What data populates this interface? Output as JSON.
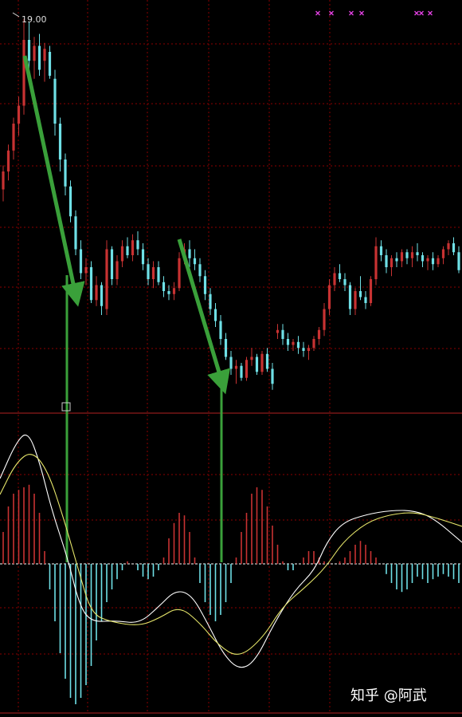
{
  "chart_data": [
    {
      "type": "candlestick",
      "title": "",
      "price_label": "19.00",
      "colors": {
        "up": "#c83232",
        "down": "#6fe0e6",
        "grid": "#8b0000",
        "arrow": "#3aa03a",
        "marker": "#e040e0"
      },
      "candles_ohlc": [
        [
          13.2,
          14.0,
          12.8,
          13.8
        ],
        [
          13.8,
          14.7,
          13.5,
          14.5
        ],
        [
          14.5,
          15.6,
          14.2,
          15.4
        ],
        [
          15.4,
          16.3,
          15.0,
          16.0
        ],
        [
          16.0,
          18.9,
          15.7,
          18.2
        ],
        [
          18.2,
          18.8,
          17.2,
          17.5
        ],
        [
          17.5,
          18.3,
          16.9,
          18.0
        ],
        [
          18.0,
          18.4,
          17.0,
          17.2
        ],
        [
          17.5,
          18.1,
          16.8,
          17.9
        ],
        [
          17.8,
          18.0,
          16.9,
          17.0
        ],
        [
          16.9,
          17.2,
          15.0,
          15.4
        ],
        [
          15.4,
          15.6,
          13.8,
          14.2
        ],
        [
          14.2,
          14.4,
          13.0,
          13.3
        ],
        [
          13.3,
          13.5,
          12.1,
          12.3
        ],
        [
          12.3,
          12.5,
          11.0,
          11.2
        ],
        [
          11.2,
          11.5,
          10.2,
          10.4
        ],
        [
          10.4,
          10.9,
          10.0,
          10.6
        ],
        [
          10.6,
          10.8,
          9.4,
          9.5
        ],
        [
          9.5,
          10.3,
          9.3,
          10.0
        ],
        [
          10.0,
          10.1,
          9.0,
          9.3
        ],
        [
          9.2,
          11.5,
          9.0,
          11.2
        ],
        [
          11.2,
          11.3,
          10.0,
          10.2
        ],
        [
          10.2,
          11.0,
          10.0,
          10.8
        ],
        [
          10.8,
          11.5,
          10.6,
          11.3
        ],
        [
          11.3,
          11.6,
          10.9,
          11.0
        ],
        [
          11.0,
          11.7,
          10.8,
          11.5
        ],
        [
          11.5,
          11.8,
          11.0,
          11.2
        ],
        [
          11.2,
          11.4,
          10.5,
          10.7
        ],
        [
          10.7,
          10.9,
          10.0,
          10.2
        ],
        [
          10.2,
          10.8,
          9.9,
          10.6
        ],
        [
          10.6,
          10.8,
          10.0,
          10.1
        ],
        [
          10.1,
          10.3,
          9.6,
          9.8
        ],
        [
          9.8,
          10.0,
          9.5,
          9.7
        ],
        [
          9.7,
          10.1,
          9.5,
          9.9
        ],
        [
          9.9,
          11.1,
          9.8,
          10.9
        ],
        [
          10.9,
          11.4,
          10.7,
          11.2
        ],
        [
          11.2,
          11.5,
          10.6,
          10.9
        ],
        [
          10.9,
          11.2,
          10.5,
          10.7
        ],
        [
          10.7,
          10.9,
          10.1,
          10.3
        ],
        [
          10.3,
          10.5,
          9.5,
          9.7
        ],
        [
          9.7,
          9.9,
          9.0,
          9.2
        ],
        [
          9.2,
          9.4,
          8.6,
          8.8
        ],
        [
          8.8,
          9.0,
          8.0,
          8.2
        ],
        [
          8.2,
          8.4,
          7.5,
          7.6
        ],
        [
          7.6,
          7.8,
          7.0,
          7.2
        ],
        [
          7.2,
          7.5,
          6.7,
          7.3
        ],
        [
          7.3,
          7.4,
          6.8,
          6.9
        ],
        [
          6.9,
          7.6,
          6.8,
          7.5
        ],
        [
          7.5,
          7.9,
          7.3,
          7.6
        ],
        [
          7.6,
          7.7,
          7.0,
          7.1
        ],
        [
          7.1,
          7.8,
          7.0,
          7.7
        ],
        [
          7.7,
          7.9,
          7.1,
          7.2
        ],
        [
          7.2,
          7.4,
          6.5,
          6.7
        ],
        [
          8.4,
          8.7,
          8.2,
          8.5
        ],
        [
          8.5,
          8.7,
          8.0,
          8.2
        ],
        [
          8.2,
          8.4,
          7.8,
          8.0
        ],
        [
          8.0,
          8.2,
          7.8,
          8.1
        ],
        [
          8.1,
          8.3,
          7.7,
          7.9
        ],
        [
          7.9,
          8.1,
          7.6,
          7.8
        ],
        [
          7.8,
          8.0,
          7.5,
          7.9
        ],
        [
          7.9,
          8.3,
          7.8,
          8.2
        ],
        [
          8.2,
          8.6,
          8.0,
          8.5
        ],
        [
          8.5,
          9.4,
          8.3,
          9.2
        ],
        [
          9.2,
          10.2,
          9.0,
          10.0
        ],
        [
          10.0,
          10.6,
          9.8,
          10.4
        ],
        [
          10.4,
          10.7,
          10.1,
          10.2
        ],
        [
          10.2,
          10.4,
          9.8,
          10.0
        ],
        [
          10.0,
          10.1,
          9.0,
          9.2
        ],
        [
          9.2,
          9.9,
          9.0,
          9.8
        ],
        [
          9.8,
          10.3,
          9.5,
          9.6
        ],
        [
          9.6,
          9.8,
          9.2,
          9.4
        ],
        [
          9.4,
          10.3,
          9.3,
          10.2
        ],
        [
          10.2,
          11.6,
          10.0,
          11.3
        ],
        [
          11.3,
          11.5,
          10.8,
          11.0
        ],
        [
          11.0,
          11.2,
          10.4,
          10.6
        ],
        [
          10.6,
          11.0,
          10.3,
          10.9
        ],
        [
          10.9,
          11.1,
          10.6,
          10.8
        ],
        [
          10.8,
          11.2,
          10.6,
          11.1
        ],
        [
          11.1,
          11.2,
          10.7,
          10.9
        ],
        [
          10.9,
          11.3,
          10.6,
          11.1
        ],
        [
          11.1,
          11.4,
          10.8,
          11.0
        ],
        [
          11.0,
          11.1,
          10.6,
          10.8
        ],
        [
          10.8,
          11.0,
          10.5,
          10.9
        ],
        [
          10.9,
          11.1,
          10.5,
          10.7
        ],
        [
          10.7,
          11.0,
          10.6,
          10.9
        ],
        [
          10.9,
          11.3,
          10.7,
          11.2
        ],
        [
          11.2,
          11.5,
          11.0,
          11.4
        ],
        [
          11.4,
          11.6,
          11.0,
          11.1
        ],
        [
          11.1,
          11.3,
          10.4,
          10.5
        ]
      ]
    },
    {
      "type": "macd",
      "series": [
        {
          "values": [
            0.25,
            0.45,
            0.55,
            0.58,
            0.6,
            0.62,
            0.55,
            0.4,
            0.1,
            -0.2,
            -0.45,
            -0.7,
            -0.9,
            -1.05,
            -1.1,
            -1.05,
            -0.95,
            -0.8,
            -0.6,
            -0.45,
            -0.3,
            -0.2,
            -0.12,
            -0.05,
            0.02,
            0.0,
            -0.05,
            -0.1,
            -0.12,
            -0.1,
            -0.05,
            0.05,
            0.2,
            0.32,
            0.4,
            0.38,
            0.25,
            0.05,
            -0.15,
            -0.3,
            -0.4,
            -0.45,
            -0.4,
            -0.3,
            -0.15,
            0.05,
            0.25,
            0.4,
            0.55,
            0.6,
            0.58,
            0.45,
            0.3,
            0.15,
            0.02,
            -0.05,
            -0.05,
            0.0,
            0.05,
            0.1,
            0.1,
            0.05,
            0.02,
            0.0,
            0.0,
            0.02,
            0.05,
            0.1,
            0.15,
            0.18,
            0.15,
            0.1,
            0.05,
            0.0,
            -0.08,
            -0.15,
            -0.2,
            -0.22,
            -0.2,
            -0.15,
            -0.1,
            -0.12,
            -0.15,
            -0.12,
            -0.1,
            -0.08,
            -0.1,
            -0.12,
            -0.15
          ]
        }
      ]
    }
  ],
  "watermark": "知乎 @阿武"
}
